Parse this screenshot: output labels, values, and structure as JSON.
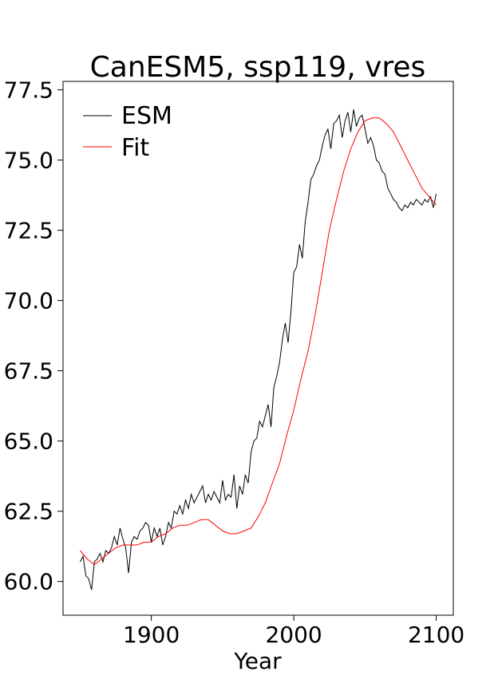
{
  "chart_data": {
    "type": "line",
    "title": "CanESM5, ssp119, vres",
    "xlabel": "Year",
    "ylabel": "",
    "xlim": [
      1838,
      2112
    ],
    "ylim": [
      58.8,
      77.8
    ],
    "xticks": [
      1900,
      2000,
      2100
    ],
    "xtick_labels": [
      "1900",
      "2000",
      "2100"
    ],
    "yticks": [
      60.0,
      62.5,
      65.0,
      67.5,
      70.0,
      72.5,
      75.0,
      77.5
    ],
    "ytick_labels": [
      "60.0",
      "62.5",
      "65.0",
      "67.5",
      "70.0",
      "72.5",
      "75.0",
      "77.5"
    ],
    "grid": false,
    "legend_position": "top-left",
    "series": [
      {
        "name": "ESM",
        "color": "#000000",
        "x": [
          1850,
          1852,
          1854,
          1856,
          1858,
          1860,
          1862,
          1864,
          1866,
          1868,
          1870,
          1872,
          1874,
          1876,
          1878,
          1880,
          1882,
          1884,
          1886,
          1888,
          1890,
          1892,
          1894,
          1896,
          1898,
          1900,
          1902,
          1904,
          1906,
          1908,
          1910,
          1912,
          1914,
          1916,
          1918,
          1920,
          1922,
          1924,
          1926,
          1928,
          1930,
          1932,
          1934,
          1936,
          1938,
          1940,
          1942,
          1944,
          1946,
          1948,
          1950,
          1952,
          1954,
          1956,
          1958,
          1960,
          1962,
          1964,
          1966,
          1968,
          1970,
          1972,
          1974,
          1976,
          1978,
          1980,
          1982,
          1984,
          1986,
          1988,
          1990,
          1992,
          1994,
          1996,
          1998,
          2000,
          2002,
          2004,
          2006,
          2008,
          2010,
          2012,
          2014,
          2016,
          2018,
          2020,
          2022,
          2024,
          2026,
          2028,
          2030,
          2032,
          2034,
          2036,
          2038,
          2040,
          2042,
          2044,
          2046,
          2048,
          2050,
          2052,
          2054,
          2056,
          2058,
          2060,
          2062,
          2064,
          2066,
          2068,
          2070,
          2072,
          2074,
          2076,
          2078,
          2080,
          2082,
          2084,
          2086,
          2088,
          2090,
          2092,
          2094,
          2096,
          2098,
          2100
        ],
        "y": [
          60.7,
          60.9,
          60.2,
          60.1,
          59.7,
          60.7,
          60.8,
          61.0,
          60.7,
          61.1,
          61.0,
          61.2,
          61.6,
          61.3,
          61.9,
          61.5,
          61.2,
          60.3,
          61.4,
          61.6,
          61.5,
          61.8,
          61.9,
          62.1,
          62.0,
          61.4,
          61.9,
          61.6,
          61.9,
          61.3,
          61.6,
          62.1,
          61.9,
          62.5,
          62.4,
          62.7,
          62.4,
          62.9,
          62.6,
          63.1,
          62.8,
          63.0,
          63.2,
          63.4,
          62.8,
          63.1,
          62.9,
          63.2,
          63.0,
          62.8,
          63.6,
          62.9,
          63.1,
          63.0,
          63.8,
          62.6,
          63.4,
          63.1,
          63.8,
          63.5,
          64.6,
          65.0,
          65.1,
          65.7,
          65.5,
          65.9,
          66.3,
          65.5,
          66.9,
          67.3,
          67.8,
          68.6,
          69.2,
          68.5,
          69.6,
          71.0,
          71.2,
          72.0,
          71.5,
          72.8,
          73.5,
          74.3,
          74.5,
          74.8,
          75.0,
          75.5,
          75.9,
          76.1,
          75.4,
          76.3,
          76.4,
          76.6,
          75.8,
          76.4,
          76.7,
          76.0,
          76.8,
          76.2,
          76.5,
          76.6,
          76.1,
          75.6,
          75.8,
          75.5,
          75.0,
          74.9,
          74.6,
          74.5,
          74.0,
          73.8,
          73.6,
          73.5,
          73.3,
          73.2,
          73.4,
          73.3,
          73.5,
          73.4,
          73.6,
          73.5,
          73.4,
          73.6,
          73.5,
          73.7,
          73.3,
          73.8
        ]
      },
      {
        "name": "Fit",
        "color": "#ff0000",
        "x": [
          1850,
          1855,
          1860,
          1865,
          1870,
          1875,
          1880,
          1885,
          1890,
          1895,
          1900,
          1905,
          1910,
          1915,
          1920,
          1925,
          1930,
          1935,
          1940,
          1945,
          1950,
          1955,
          1960,
          1965,
          1970,
          1975,
          1980,
          1985,
          1990,
          1995,
          2000,
          2005,
          2010,
          2015,
          2020,
          2025,
          2030,
          2035,
          2040,
          2045,
          2050,
          2055,
          2060,
          2065,
          2070,
          2075,
          2080,
          2085,
          2090,
          2095,
          2100
        ],
        "y": [
          61.1,
          60.8,
          60.6,
          60.8,
          61.0,
          61.2,
          61.3,
          61.3,
          61.3,
          61.4,
          61.4,
          61.6,
          61.7,
          61.9,
          62.0,
          62.0,
          62.1,
          62.2,
          62.2,
          62.0,
          61.8,
          61.7,
          61.7,
          61.8,
          61.9,
          62.3,
          62.8,
          63.5,
          64.2,
          65.2,
          66.1,
          67.2,
          68.2,
          69.5,
          71.0,
          72.5,
          73.6,
          74.6,
          75.4,
          76.0,
          76.4,
          76.5,
          76.5,
          76.3,
          76.0,
          75.5,
          75.0,
          74.5,
          74.0,
          73.7,
          73.4
        ]
      }
    ]
  }
}
